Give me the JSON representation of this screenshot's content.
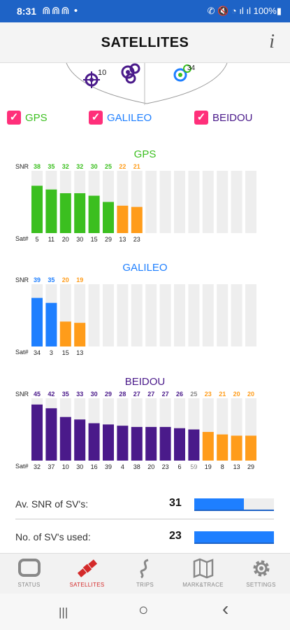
{
  "status_bar": {
    "time": "8:31",
    "notifications": "⋒⋒⋒ •",
    "right_text": "✆ 🔇 ◔ ıl ıl 100%▮",
    "bg_color": "#1e63c6"
  },
  "app_bar": {
    "title": "SATELLITES",
    "info_label": "i"
  },
  "skyplot": {
    "visible_labels": [
      "10",
      "34"
    ]
  },
  "systems": [
    {
      "label": "GPS",
      "checked": true,
      "color": "#3bbf1f"
    },
    {
      "label": "GALILEO",
      "checked": true,
      "color": "#1e7fff"
    },
    {
      "label": "BEIDOU",
      "checked": true,
      "color": "#4a1a8a"
    }
  ],
  "chart_data": [
    {
      "type": "bar",
      "title": "GPS",
      "snr_label": "SNR",
      "sat_label": "Sat#",
      "color": "#3bbf1f",
      "low_color": "#ff9c1a",
      "categories": [
        "5",
        "11",
        "20",
        "30",
        "15",
        "29",
        "13",
        "23"
      ],
      "values": [
        38,
        35,
        32,
        32,
        30,
        25,
        22,
        21
      ],
      "low_flags": [
        false,
        false,
        false,
        false,
        false,
        false,
        true,
        true
      ],
      "slots": 16,
      "ylim": [
        0,
        50
      ]
    },
    {
      "type": "bar",
      "title": "GALILEO",
      "snr_label": "SNR",
      "sat_label": "Sat#",
      "color": "#1e7fff",
      "low_color": "#ff9c1a",
      "categories": [
        "34",
        "3",
        "15",
        "13"
      ],
      "values": [
        39,
        35,
        20,
        19
      ],
      "low_flags": [
        false,
        false,
        true,
        true
      ],
      "slots": 16,
      "ylim": [
        0,
        50
      ]
    },
    {
      "type": "bar",
      "title": "BEIDOU",
      "snr_label": "SNR",
      "sat_label": "Sat#",
      "color": "#4a1a8a",
      "low_color": "#ff9c1a",
      "categories": [
        "32",
        "37",
        "10",
        "30",
        "16",
        "39",
        "4",
        "38",
        "20",
        "23",
        "6",
        "59",
        "19",
        "8",
        "13",
        "29"
      ],
      "values": [
        45,
        42,
        35,
        33,
        30,
        29,
        28,
        27,
        27,
        27,
        26,
        25,
        23,
        21,
        20,
        20
      ],
      "low_flags": [
        false,
        false,
        false,
        false,
        false,
        false,
        false,
        false,
        false,
        false,
        false,
        false,
        true,
        true,
        true,
        true
      ],
      "dim_flags": [
        false,
        false,
        false,
        false,
        false,
        false,
        false,
        false,
        false,
        false,
        false,
        true,
        false,
        false,
        false,
        false
      ],
      "slots": 16,
      "ylim": [
        0,
        50
      ]
    }
  ],
  "stats": [
    {
      "label": "Av. SNR of SV's:",
      "value": "31",
      "fill_fraction": 0.62
    },
    {
      "label": "No. of SV's used:",
      "value": "23",
      "fill_fraction": 1.0
    }
  ],
  "bottom_nav": [
    {
      "label": "STATUS",
      "icon": "status-icon",
      "active": false
    },
    {
      "label": "SATELLITES",
      "icon": "satellite-icon",
      "active": true
    },
    {
      "label": "TRIPS",
      "icon": "trips-icon",
      "active": false
    },
    {
      "label": "MARK&TRACE",
      "icon": "map-icon",
      "active": false
    },
    {
      "label": "SETTINGS",
      "icon": "gear-icon",
      "active": false
    }
  ],
  "system_nav": {
    "recents": "|||",
    "home": "○",
    "back": "‹"
  }
}
